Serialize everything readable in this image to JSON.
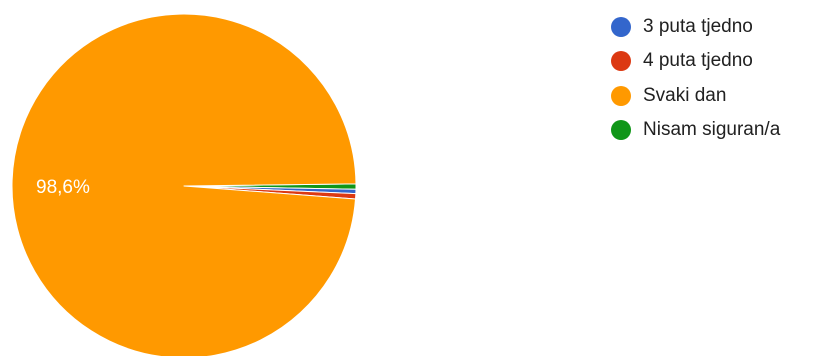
{
  "chart_data": {
    "type": "pie",
    "slices": [
      {
        "label": "3 puta tjedno",
        "value": 0.4,
        "color": "#3366cc"
      },
      {
        "label": "4 puta tjedno",
        "value": 0.5,
        "color": "#dc3912"
      },
      {
        "label": "Svaki dan",
        "value": 98.6,
        "color": "#ff9900",
        "data_label": "98,6%"
      },
      {
        "label": "Nisam siguran/a",
        "value": 0.5,
        "color": "#109618"
      }
    ],
    "legend_position": "right",
    "title": "",
    "unit": "%"
  }
}
